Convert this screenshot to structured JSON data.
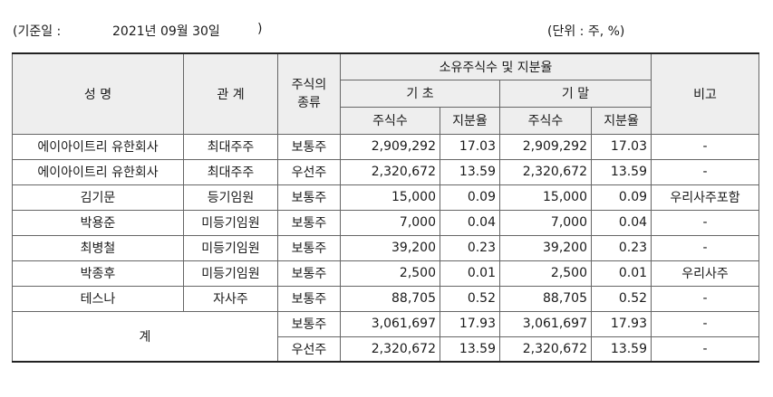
{
  "meta": {
    "base_label": "(기준일 :",
    "base_date": "2021년 09월 30일",
    "base_close": ")",
    "unit": "(단위 : 주, %)"
  },
  "header": {
    "name": "성 명",
    "relation": "관 계",
    "stock_type": "주식의 종류",
    "group": "소유주식수 및 지분율",
    "begin": "기 초",
    "end": "기 말",
    "shares": "주식수",
    "ratio": "지분율",
    "note": "비고"
  },
  "rows": [
    {
      "name": "에이아이트리 유한회사",
      "relation": "최대주주",
      "type": "보통주",
      "begin_shares": "2,909,292",
      "begin_ratio": "17.03",
      "end_shares": "2,909,292",
      "end_ratio": "17.03",
      "note": "-"
    },
    {
      "name": "에이아이트리 유한회사",
      "relation": "최대주주",
      "type": "우선주",
      "begin_shares": "2,320,672",
      "begin_ratio": "13.59",
      "end_shares": "2,320,672",
      "end_ratio": "13.59",
      "note": "-"
    },
    {
      "name": "김기문",
      "relation": "등기임원",
      "type": "보통주",
      "begin_shares": "15,000",
      "begin_ratio": "0.09",
      "end_shares": "15,000",
      "end_ratio": "0.09",
      "note": "우리사주포함"
    },
    {
      "name": "박용준",
      "relation": "미등기임원",
      "type": "보통주",
      "begin_shares": "7,000",
      "begin_ratio": "0.04",
      "end_shares": "7,000",
      "end_ratio": "0.04",
      "note": "-"
    },
    {
      "name": "최병철",
      "relation": "미등기임원",
      "type": "보통주",
      "begin_shares": "39,200",
      "begin_ratio": "0.23",
      "end_shares": "39,200",
      "end_ratio": "0.23",
      "note": "-"
    },
    {
      "name": "박종후",
      "relation": "미등기임원",
      "type": "보통주",
      "begin_shares": "2,500",
      "begin_ratio": "0.01",
      "end_shares": "2,500",
      "end_ratio": "0.01",
      "note": "우리사주"
    },
    {
      "name": "테스나",
      "relation": "자사주",
      "type": "보통주",
      "begin_shares": "88,705",
      "begin_ratio": "0.52",
      "end_shares": "88,705",
      "end_ratio": "0.52",
      "note": "-"
    }
  ],
  "total": {
    "label": "계",
    "rows": [
      {
        "type": "보통주",
        "begin_shares": "3,061,697",
        "begin_ratio": "17.93",
        "end_shares": "3,061,697",
        "end_ratio": "17.93",
        "note": "-"
      },
      {
        "type": "우선주",
        "begin_shares": "2,320,672",
        "begin_ratio": "13.59",
        "end_shares": "2,320,672",
        "end_ratio": "13.59",
        "note": "-"
      }
    ]
  }
}
